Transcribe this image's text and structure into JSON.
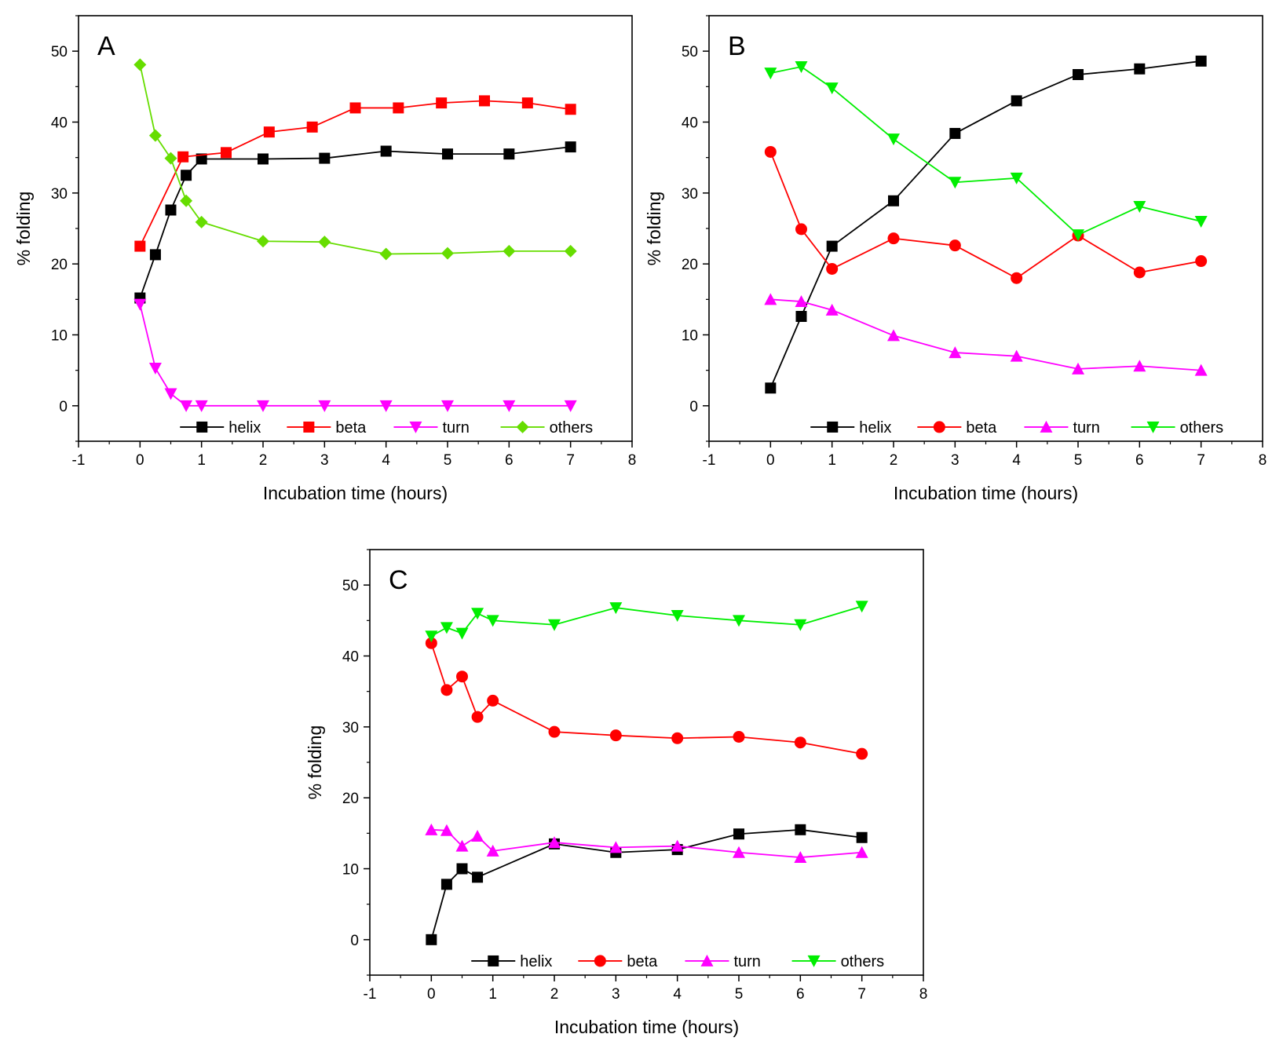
{
  "chart_data": [
    {
      "type": "line",
      "panel": "A",
      "xlabel": "Incubation time (hours)",
      "ylabel": "% folding",
      "xlim": [
        -1,
        8
      ],
      "ylim": [
        -5,
        55
      ],
      "xticks": [
        -1,
        0,
        1,
        2,
        3,
        4,
        5,
        6,
        7,
        8
      ],
      "yticks": [
        0,
        10,
        20,
        30,
        40,
        50
      ],
      "legend_position": "bottom",
      "series": [
        {
          "name": "helix",
          "color": "#000000",
          "marker": "square",
          "x": [
            0,
            0.25,
            0.5,
            0.75,
            1,
            2,
            3,
            4,
            5,
            6,
            7
          ],
          "y": [
            15.2,
            21.3,
            27.6,
            32.5,
            34.8,
            34.8,
            34.9,
            35.9,
            35.5,
            35.5,
            36.5
          ]
        },
        {
          "name": "beta",
          "color": "#ff0000",
          "marker": "square",
          "x": [
            0,
            0.7,
            1.4,
            2.1,
            2.8,
            3.5,
            4.2,
            4.9,
            5.6,
            6.3,
            7
          ],
          "y": [
            22.5,
            35.1,
            35.7,
            38.6,
            39.3,
            42.0,
            42.0,
            42.7,
            43.0,
            42.7,
            41.8
          ]
        },
        {
          "name": "turn",
          "color": "#ff00ff",
          "marker": "triangle-down",
          "x": [
            0,
            0.25,
            0.5,
            0.75,
            1,
            2,
            3,
            4,
            5,
            6,
            7
          ],
          "y": [
            14.3,
            5.3,
            1.7,
            0,
            0,
            0,
            0,
            0,
            0,
            0,
            0
          ]
        },
        {
          "name": "others",
          "color": "#66dd00",
          "marker": "diamond",
          "x": [
            0,
            0.25,
            0.5,
            0.75,
            1,
            2,
            3,
            4,
            5,
            6,
            7
          ],
          "y": [
            48.1,
            38.1,
            34.9,
            28.9,
            25.9,
            23.2,
            23.1,
            21.4,
            21.5,
            21.8,
            21.8
          ]
        }
      ]
    },
    {
      "type": "line",
      "panel": "B",
      "xlabel": "Incubation time (hours)",
      "ylabel": "% folding",
      "xlim": [
        -1,
        8
      ],
      "ylim": [
        -5,
        55
      ],
      "xticks": [
        -1,
        0,
        1,
        2,
        3,
        4,
        5,
        6,
        7,
        8
      ],
      "yticks": [
        0,
        10,
        20,
        30,
        40,
        50
      ],
      "legend_position": "bottom",
      "series": [
        {
          "name": "helix",
          "color": "#000000",
          "marker": "square",
          "x": [
            0,
            0.5,
            1,
            2,
            3,
            4,
            5,
            6,
            7
          ],
          "y": [
            2.5,
            12.6,
            22.5,
            28.9,
            38.4,
            43.0,
            46.7,
            47.5,
            48.6
          ]
        },
        {
          "name": "beta",
          "color": "#ff0000",
          "marker": "circle",
          "x": [
            0,
            0.5,
            1,
            2,
            3,
            4,
            5,
            6,
            7
          ],
          "y": [
            35.8,
            24.9,
            19.3,
            23.6,
            22.6,
            18.0,
            24.0,
            18.8,
            20.4
          ]
        },
        {
          "name": "turn",
          "color": "#ff00ff",
          "marker": "triangle-up",
          "x": [
            0,
            0.5,
            1,
            2,
            3,
            4,
            5,
            6,
            7
          ],
          "y": [
            15.0,
            14.7,
            13.5,
            9.9,
            7.5,
            7.0,
            5.2,
            5.6,
            5.0
          ]
        },
        {
          "name": "others",
          "color": "#00ee00",
          "marker": "triangle-down",
          "x": [
            0,
            0.5,
            1,
            2,
            3,
            4,
            5,
            6,
            7
          ],
          "y": [
            46.9,
            47.8,
            44.8,
            37.6,
            31.5,
            32.1,
            24.1,
            28.1,
            26.0
          ]
        }
      ]
    },
    {
      "type": "line",
      "panel": "C",
      "xlabel": "Incubation time (hours)",
      "ylabel": "% folding",
      "xlim": [
        -1,
        8
      ],
      "ylim": [
        -5,
        55
      ],
      "xticks": [
        -1,
        0,
        1,
        2,
        3,
        4,
        5,
        6,
        7,
        8
      ],
      "yticks": [
        0,
        10,
        20,
        30,
        40,
        50
      ],
      "legend_position": "bottom",
      "series": [
        {
          "name": "helix",
          "color": "#000000",
          "marker": "square",
          "x": [
            0,
            0.25,
            0.5,
            0.75,
            1,
            2,
            3,
            4,
            5,
            6,
            7
          ],
          "y": [
            0,
            7.8,
            10.0,
            8.8,
            null,
            13.5,
            12.3,
            12.7,
            14.9,
            15.5,
            14.4
          ]
        },
        {
          "name": "beta",
          "color": "#ff0000",
          "marker": "circle",
          "x": [
            0,
            0.25,
            0.5,
            0.75,
            1,
            2,
            3,
            4,
            5,
            6,
            7
          ],
          "y": [
            41.8,
            35.2,
            37.1,
            31.4,
            33.7,
            29.3,
            28.8,
            28.4,
            28.6,
            27.8,
            26.2
          ]
        },
        {
          "name": "turn",
          "color": "#ff00ff",
          "marker": "triangle-up",
          "x": [
            0,
            0.25,
            0.5,
            0.75,
            1,
            2,
            3,
            4,
            5,
            6,
            7
          ],
          "y": [
            15.5,
            15.4,
            13.2,
            14.6,
            12.5,
            13.7,
            13.0,
            13.2,
            12.3,
            11.6,
            12.3
          ]
        },
        {
          "name": "others",
          "color": "#00ee00",
          "marker": "triangle-down",
          "x": [
            0,
            0.25,
            0.5,
            0.75,
            1,
            2,
            3,
            4,
            5,
            6,
            7
          ],
          "y": [
            42.8,
            44.0,
            43.2,
            46.0,
            45.0,
            44.4,
            46.8,
            45.7,
            45.0,
            44.4,
            47.0
          ]
        }
      ]
    }
  ]
}
